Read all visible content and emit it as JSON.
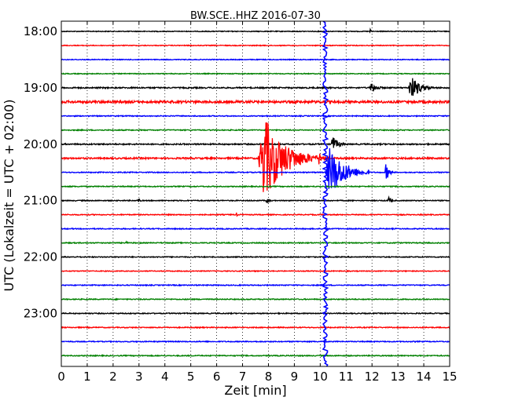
{
  "chart_data": {
    "type": "line",
    "title": "BW.SCE..HHZ 2016-07-30",
    "xlabel": "Zeit  [min]",
    "ylabel": "UTC (Lokalzeit = UTC + 02:00)",
    "xlim": [
      0,
      15
    ],
    "x_ticks": [
      "0",
      "1",
      "2",
      "3",
      "4",
      "5",
      "6",
      "7",
      "8",
      "9",
      "10",
      "11",
      "12",
      "13",
      "14",
      "15"
    ],
    "y_ticks": [
      {
        "row": 0,
        "label": "18:00"
      },
      {
        "row": 4,
        "label": "19:00"
      },
      {
        "row": 8,
        "label": "20:00"
      },
      {
        "row": 12,
        "label": "21:00"
      },
      {
        "row": 16,
        "label": "22:00"
      },
      {
        "row": 20,
        "label": "23:00"
      }
    ],
    "grid": true,
    "trace_colors": [
      "#000000",
      "#ff0000",
      "#0000ff",
      "#008000"
    ],
    "rows": [
      {
        "start": "18:00",
        "color": "#000000",
        "noise": 0.5,
        "events": [
          {
            "t": 11.9,
            "amp": 3,
            "dur": 0.25
          }
        ]
      },
      {
        "start": "18:15",
        "color": "#ff0000",
        "noise": 0.5,
        "events": []
      },
      {
        "start": "18:30",
        "color": "#0000ff",
        "noise": 0.5,
        "events": []
      },
      {
        "start": "18:45",
        "color": "#008000",
        "noise": 0.5,
        "events": []
      },
      {
        "start": "19:00",
        "color": "#000000",
        "noise": 0.8,
        "events": [
          {
            "t": 0.4,
            "amp": 2,
            "dur": 0.2
          },
          {
            "t": 11.9,
            "amp": 7,
            "dur": 0.7
          },
          {
            "t": 13.4,
            "amp": 16,
            "dur": 1.0
          }
        ]
      },
      {
        "start": "19:15",
        "color": "#ff0000",
        "noise": 1.5,
        "events": []
      },
      {
        "start": "19:30",
        "color": "#0000ff",
        "noise": 0.6,
        "events": []
      },
      {
        "start": "19:45",
        "color": "#008000",
        "noise": 0.6,
        "events": []
      },
      {
        "start": "20:00",
        "color": "#000000",
        "noise": 0.8,
        "events": [
          {
            "t": 10.4,
            "amp": 12,
            "dur": 0.6
          }
        ]
      },
      {
        "start": "20:15",
        "color": "#ff0000",
        "noise": 1.0,
        "events": [
          {
            "t": 7.6,
            "amp": 55,
            "dur": 2.3
          },
          {
            "t": 9.9,
            "amp": 10,
            "dur": 0.6
          }
        ]
      },
      {
        "start": "20:30",
        "color": "#0000ff",
        "noise": 0.6,
        "events": [
          {
            "t": 10.2,
            "amp": 32,
            "dur": 1.7
          },
          {
            "t": 12.5,
            "amp": 12,
            "dur": 0.35
          }
        ]
      },
      {
        "start": "20:45",
        "color": "#008000",
        "noise": 0.6,
        "events": []
      },
      {
        "start": "21:00",
        "color": "#000000",
        "noise": 0.6,
        "events": [
          {
            "t": 2.95,
            "amp": 6,
            "dur": 0.15
          },
          {
            "t": 7.9,
            "amp": 5,
            "dur": 0.3
          },
          {
            "t": 12.6,
            "amp": 6,
            "dur": 0.3
          }
        ]
      },
      {
        "start": "21:15",
        "color": "#ff0000",
        "noise": 0.6,
        "events": [
          {
            "t": 6.75,
            "amp": 3,
            "dur": 0.15
          }
        ]
      },
      {
        "start": "21:30",
        "color": "#0000ff",
        "noise": 0.6,
        "events": []
      },
      {
        "start": "21:45",
        "color": "#008000",
        "noise": 0.6,
        "events": [
          {
            "t": 2.5,
            "amp": 2,
            "dur": 0.2
          }
        ]
      },
      {
        "start": "22:00",
        "color": "#000000",
        "noise": 0.6,
        "events": []
      },
      {
        "start": "22:15",
        "color": "#ff0000",
        "noise": 0.5,
        "events": []
      },
      {
        "start": "22:30",
        "color": "#0000ff",
        "noise": 0.6,
        "events": []
      },
      {
        "start": "22:45",
        "color": "#008000",
        "noise": 0.6,
        "events": []
      },
      {
        "start": "23:00",
        "color": "#000000",
        "noise": 0.6,
        "events": []
      },
      {
        "start": "23:15",
        "color": "#ff0000",
        "noise": 0.6,
        "events": []
      },
      {
        "start": "23:30",
        "color": "#0000ff",
        "noise": 0.6,
        "events": []
      },
      {
        "start": "23:45",
        "color": "#008000",
        "noise": 0.6,
        "events": []
      }
    ],
    "saturated_trace": {
      "color": "#0000ff",
      "t": 10.2,
      "from_row": 0,
      "to_row": 23
    }
  }
}
